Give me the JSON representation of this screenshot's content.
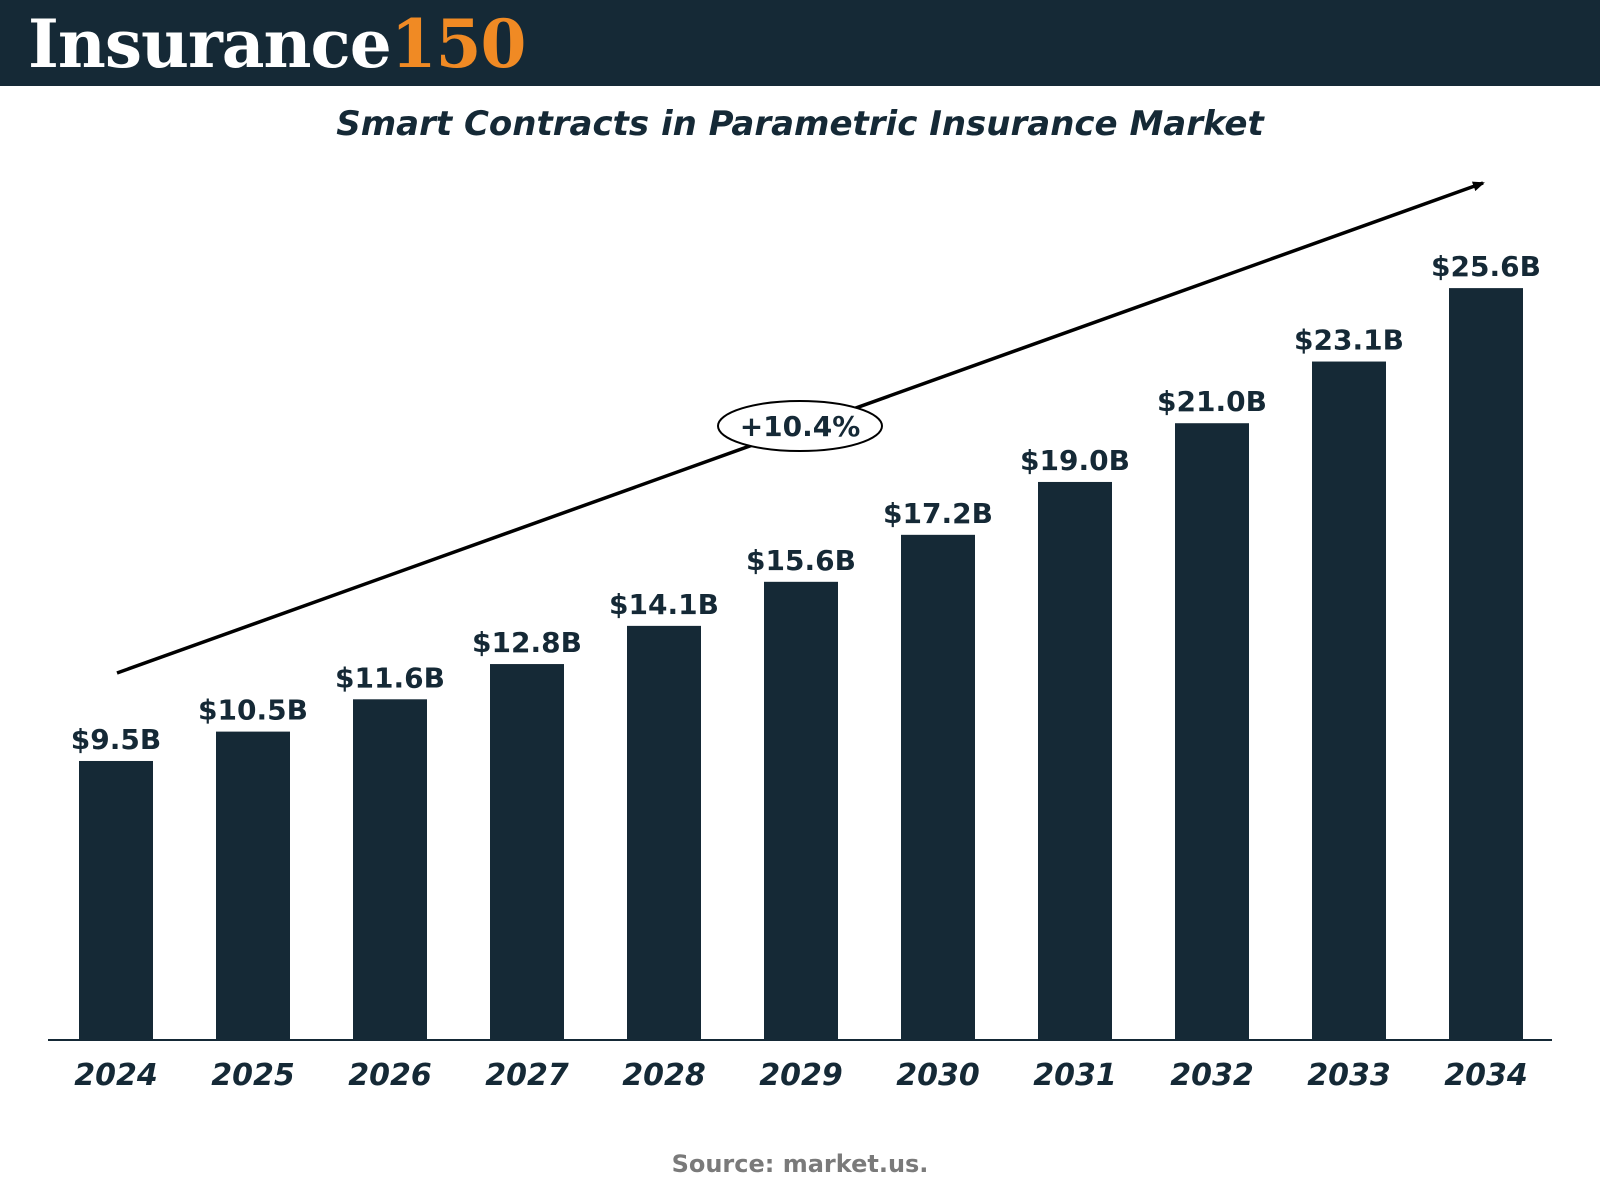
{
  "brand": {
    "logo_word": "Insurance",
    "logo_number": "150",
    "colors": {
      "header_bg": "#152936",
      "logo_word": "#ffffff",
      "logo_number": "#f08a24"
    }
  },
  "source": "Source: market.us.",
  "chart_data": {
    "type": "bar",
    "title": "Smart Contracts in Parametric Insurance Market",
    "categories": [
      "2024",
      "2025",
      "2026",
      "2027",
      "2028",
      "2029",
      "2030",
      "2031",
      "2032",
      "2033",
      "2034"
    ],
    "values": [
      9.5,
      10.5,
      11.6,
      12.8,
      14.1,
      15.6,
      17.2,
      19.0,
      21.0,
      23.1,
      25.6
    ],
    "value_labels": [
      "$9.5B",
      "$10.5B",
      "$11.6B",
      "$12.8B",
      "$14.1B",
      "$15.6B",
      "$17.2B",
      "$19.0B",
      "$21.0B",
      "$23.1B",
      "$25.6B"
    ],
    "unit": "USD billion",
    "xlabel": "",
    "ylabel": "",
    "ylim": [
      0,
      28.6
    ],
    "grid": false,
    "legend": "none",
    "bar_color": "#152936",
    "annotation": {
      "type": "trend-arrow",
      "label": "+10.4%"
    }
  }
}
